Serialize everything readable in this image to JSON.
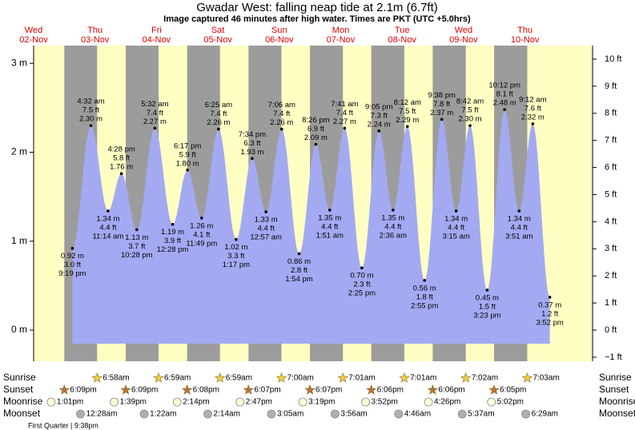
{
  "chart_data": {
    "type": "tide",
    "title": "Gwadar West: falling  neap tide at 2.1m (6.7ft)",
    "subtitle": "Image captured 46 minutes after high water. Times are PKT (UTC +5.0hrs)",
    "ylim": [
      -0.35,
      3.2
    ],
    "yticks": [
      {
        "value": 0,
        "label": "0 m"
      },
      {
        "value": 1,
        "label": "1 m"
      },
      {
        "value": 2,
        "label": "2 m"
      },
      {
        "value": 3,
        "label": "3 m"
      }
    ],
    "y2lim": [
      -1.15,
      10.5
    ],
    "y2ticks": [
      {
        "value": -1,
        "label": "−1 ft"
      },
      {
        "value": 0,
        "label": "0 ft"
      },
      {
        "value": 1,
        "label": "1 ft"
      },
      {
        "value": 2,
        "label": "2 ft"
      },
      {
        "value": 3,
        "label": "3 ft"
      },
      {
        "value": 4,
        "label": "4 ft"
      },
      {
        "value": 5,
        "label": "5 ft"
      },
      {
        "value": 6,
        "label": "6 ft"
      },
      {
        "value": 7,
        "label": "7 ft"
      },
      {
        "value": 8,
        "label": "8 ft"
      },
      {
        "value": 9,
        "label": "9 ft"
      },
      {
        "value": 10,
        "label": "10 ft"
      }
    ],
    "color": "#a3aaf2",
    "row_labels": {
      "sunrise": "Sunrise",
      "sunset": "Sunset",
      "moonrise": "Moonrise",
      "moonset": "Moonset"
    },
    "moon_phase": "First Quarter | 9:38pm",
    "days": [
      {
        "weekday": "Wed",
        "date": "02-Nov",
        "sunrise": null,
        "sunset": "6:09pm",
        "moonrise": "1:01pm",
        "moonset": null,
        "tides": [
          {
            "time": "9:19 pm",
            "value": 0.92,
            "value_label": "0.92 m",
            "ft": "3.0 ft"
          }
        ]
      },
      {
        "weekday": "Thu",
        "date": "03-Nov",
        "sunrise": "6:58am",
        "sunset": "6:09pm",
        "moonrise": "1:39pm",
        "moonset": "12:28am",
        "tides": [
          {
            "time": "4:32 am",
            "value": 2.3,
            "value_label": "2.30 m",
            "ft": "7.5 ft"
          },
          {
            "time": "11:14 am",
            "value": 1.34,
            "value_label": "1.34 m",
            "ft": "4.4 ft"
          },
          {
            "time": "4:28 pm",
            "value": 1.76,
            "value_label": "1.76 m",
            "ft": "5.8 ft"
          },
          {
            "time": "10:28 pm",
            "value": 1.13,
            "value_label": "1.13 m",
            "ft": "3.7 ft"
          }
        ]
      },
      {
        "weekday": "Fri",
        "date": "04-Nov",
        "sunrise": "6:59am",
        "sunset": "6:08pm",
        "moonrise": "2:14pm",
        "moonset": "1:22am",
        "tides": [
          {
            "time": "5:32 am",
            "value": 2.27,
            "value_label": "2.27 m",
            "ft": "7.4 ft"
          },
          {
            "time": "12:28 pm",
            "value": 1.19,
            "value_label": "1.19 m",
            "ft": "3.9 ft"
          },
          {
            "time": "6:17 pm",
            "value": 1.8,
            "value_label": "1.80 m",
            "ft": "5.9 ft"
          },
          {
            "time": "11:49 pm",
            "value": 1.26,
            "value_label": "1.26 m",
            "ft": "4.1 ft"
          }
        ]
      },
      {
        "weekday": "Sat",
        "date": "05-Nov",
        "sunrise": "6:59am",
        "sunset": "6:07pm",
        "moonrise": "2:47pm",
        "moonset": "2:14am",
        "tides": [
          {
            "time": "6:25 am",
            "value": 2.26,
            "value_label": "2.26 m",
            "ft": "7.4 ft"
          },
          {
            "time": "1:17 pm",
            "value": 1.02,
            "value_label": "1.02 m",
            "ft": "3.3 ft"
          },
          {
            "time": "7:34 pm",
            "value": 1.93,
            "value_label": "1.93 m",
            "ft": "6.3 ft"
          }
        ]
      },
      {
        "weekday": "Sun",
        "date": "06-Nov",
        "sunrise": "7:00am",
        "sunset": "6:07pm",
        "moonrise": "3:19pm",
        "moonset": "3:05am",
        "tides": [
          {
            "time": "12:57 am",
            "value": 1.33,
            "value_label": "1.33 m",
            "ft": "4.4 ft"
          },
          {
            "time": "7:06 am",
            "value": 2.26,
            "value_label": "2.26 m",
            "ft": "7.4 ft"
          },
          {
            "time": "1:54 pm",
            "value": 0.86,
            "value_label": "0.86 m",
            "ft": "2.8 ft"
          },
          {
            "time": "8:26 pm",
            "value": 2.09,
            "value_label": "2.09 m",
            "ft": "6.9 ft"
          }
        ]
      },
      {
        "weekday": "Mon",
        "date": "07-Nov",
        "sunrise": "7:01am",
        "sunset": "6:06pm",
        "moonrise": "3:52pm",
        "moonset": "3:56am",
        "tides": [
          {
            "time": "1:51 am",
            "value": 1.35,
            "value_label": "1.35 m",
            "ft": "4.4 ft"
          },
          {
            "time": "7:41 am",
            "value": 2.27,
            "value_label": "2.27 m",
            "ft": "7.4 ft"
          },
          {
            "time": "2:25 pm",
            "value": 0.7,
            "value_label": "0.70 m",
            "ft": "2.3 ft"
          },
          {
            "time": "9:05 pm",
            "value": 2.24,
            "value_label": "2.24 m",
            "ft": "7.3 ft"
          }
        ]
      },
      {
        "weekday": "Tue",
        "date": "08-Nov",
        "sunrise": "7:01am",
        "sunset": "6:06pm",
        "moonrise": "4:26pm",
        "moonset": "4:46am",
        "tides": [
          {
            "time": "2:36 am",
            "value": 1.35,
            "value_label": "1.35 m",
            "ft": "4.4 ft"
          },
          {
            "time": "8:12 am",
            "value": 2.29,
            "value_label": "2.29 m",
            "ft": "7.5 ft"
          },
          {
            "time": "2:55 pm",
            "value": 0.56,
            "value_label": "0.56 m",
            "ft": "1.8 ft"
          },
          {
            "time": "9:38 pm",
            "value": 2.37,
            "value_label": "2.37 m",
            "ft": "7.8 ft"
          }
        ]
      },
      {
        "weekday": "Wed",
        "date": "09-Nov",
        "sunrise": "7:02am",
        "sunset": "6:05pm",
        "moonrise": "5:02pm",
        "moonset": "5:37am",
        "tides": [
          {
            "time": "3:15 am",
            "value": 1.34,
            "value_label": "1.34 m",
            "ft": "4.4 ft"
          },
          {
            "time": "8:42 am",
            "value": 2.3,
            "value_label": "2.30 m",
            "ft": "7.5 ft"
          },
          {
            "time": "3:23 pm",
            "value": 0.45,
            "value_label": "0.45 m",
            "ft": "1.5 ft"
          },
          {
            "time": "10:12 pm",
            "value": 2.48,
            "value_label": "2.48 m",
            "ft": "8.1 ft"
          }
        ]
      },
      {
        "weekday": "Thu",
        "date": "10-Nov",
        "sunrise": "7:03am",
        "sunset": null,
        "moonrise": null,
        "moonset": "6:29am",
        "tides": [
          {
            "time": "3:51 am",
            "value": 1.34,
            "value_label": "1.34 m",
            "ft": "4.4 ft"
          },
          {
            "time": "9:12 am",
            "value": 2.32,
            "value_label": "2.32 m",
            "ft": "7.6 ft"
          },
          {
            "time": "3:52 pm",
            "value": 0.37,
            "value_label": "0.37 m",
            "ft": "1.2 ft"
          }
        ]
      }
    ]
  }
}
